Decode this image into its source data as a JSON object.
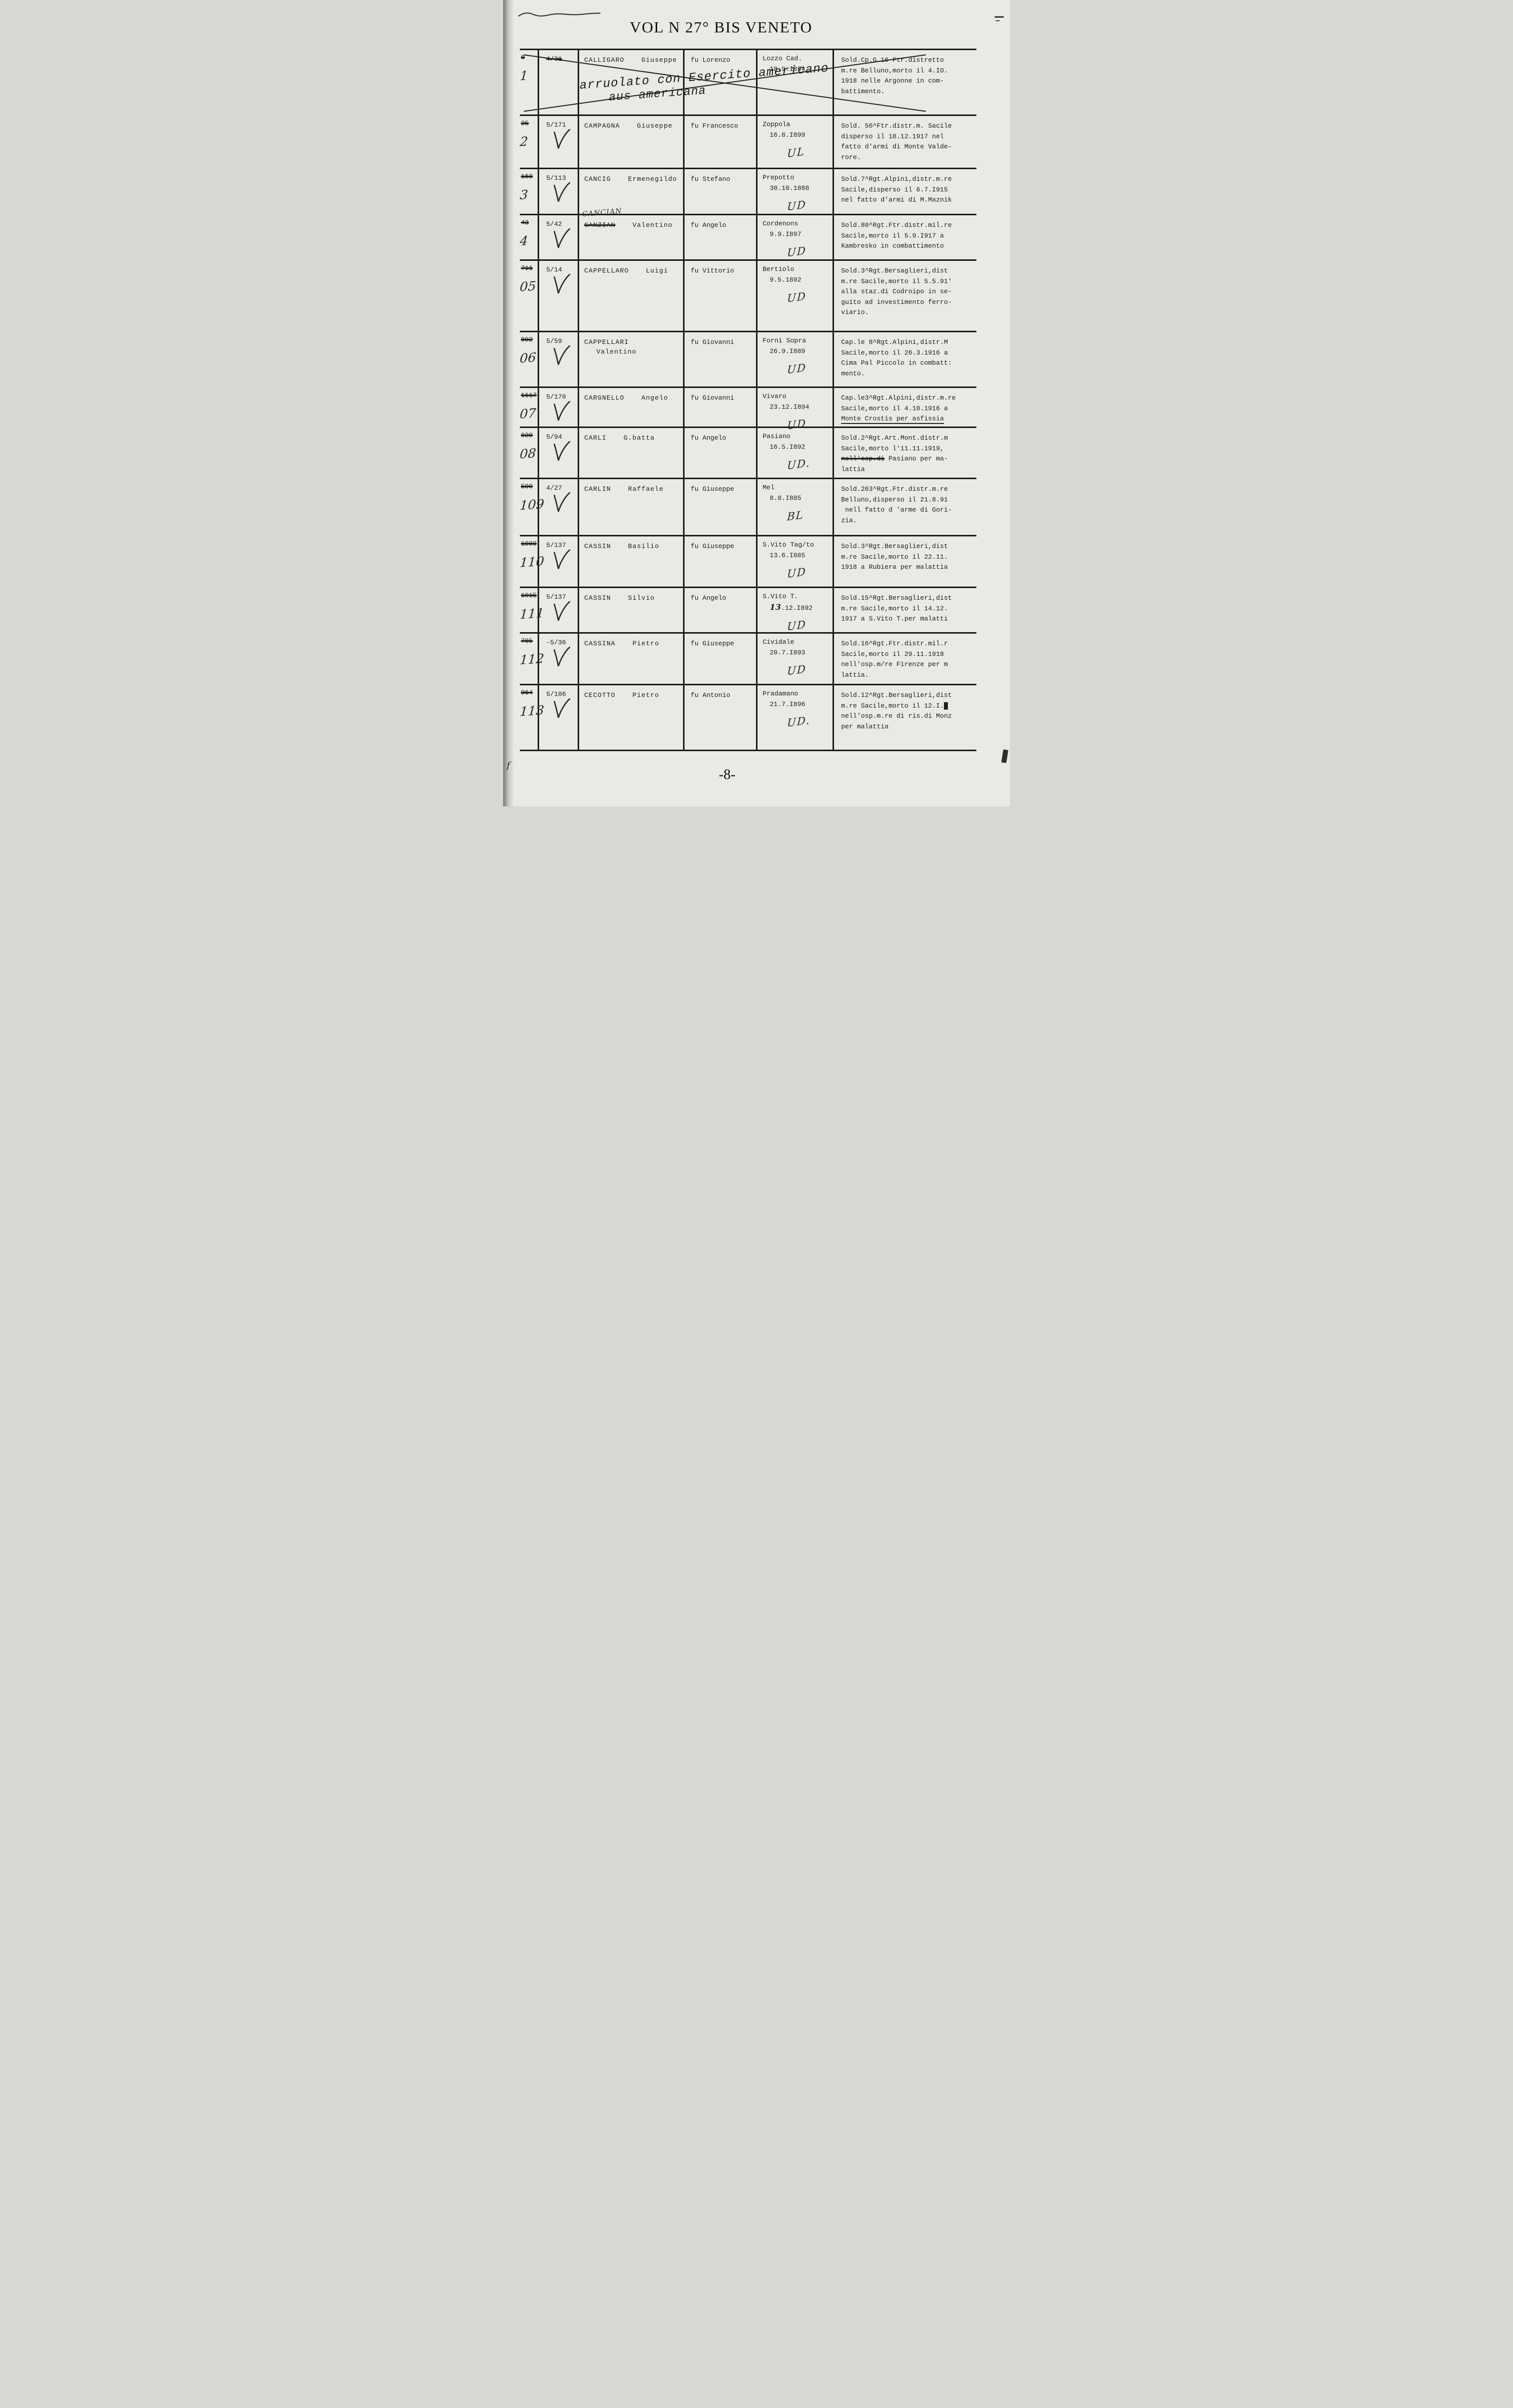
{
  "page": {
    "title": "VOL N 27° BIS VENETO",
    "page_number": "-8-"
  },
  "table": {
    "rows": [
      {
        "old_no": "8",
        "new_no": "1",
        "ref": "4/31",
        "ref_struck": true,
        "checked": false,
        "struck": true,
        "surname": "CALLIGARO",
        "given": "Giuseppe",
        "father": "fu Lorenzo",
        "place": "Lozzo Cad.",
        "date": "18.9.I894",
        "mark": "",
        "details": [
          "Sold.Cp.G.16 Ftr.distretto",
          "m.re Belluno,morto il 4.IO.",
          "1918 nelle Argonne in com-",
          "battimento."
        ],
        "note_lines": [
          "arruolato con Esercito americano",
          "aus americana"
        ]
      },
      {
        "old_no": "25",
        "new_no": "2",
        "ref": "5/171",
        "checked": true,
        "surname": "CAMPAGNA",
        "given": "Giuseppe",
        "father": "fu Francesco",
        "place": "Zoppola",
        "date": "16.8.I899",
        "mark": "UL",
        "details": [
          "Sold. 56^Ftr.distr.m. Sacile",
          "disperso il 18.12.1917 nel",
          "fatto d'armi di Monte Valde-",
          "rore."
        ]
      },
      {
        "old_no": "168",
        "new_no": "3",
        "ref": "5/113",
        "checked": true,
        "surname": "CANCIG",
        "given": "Ermenegildo",
        "father": "fu Stefano",
        "place": "Prepotto",
        "date": "30.10.1888",
        "mark": "UD",
        "details": [
          "Sold.7^Rgt.Alpini,distr.m.re",
          "Sacile,disperso il 6.7.I915",
          "nel fatto d'armi di M.Maznik"
        ]
      },
      {
        "old_no": "43",
        "new_no": "4",
        "ref": "5/42",
        "checked": true,
        "surname": "CANZIAN",
        "surname_struck": true,
        "correction": "CANCIAN",
        "given": "Valentino",
        "father": "fu Angelo",
        "place": "Cordenons",
        "date": "9.9.I897",
        "mark": "UD",
        "details": [
          "Sold.80^Rgt.Ftr.distr.mil.re",
          "Sacile,morto il 5.9.I917 a",
          "Kambresko in combattimento"
        ]
      },
      {
        "old_no": "711",
        "new_no": "05",
        "ref": "5/14",
        "checked": true,
        "surname": "CAPPELLARO",
        "given": "Luigi",
        "father": "fu Vittorio",
        "place": "Bertiolo",
        "date": "9.5.1892",
        "mark": "UD",
        "details": [
          "Sold.3^Rgt.Bersaglieri,dist",
          "m.re Sacile,morto il 5.5.91'",
          "alla staz.di Codroipo in se-",
          "guito ad investimento ferro-",
          "viario."
        ]
      },
      {
        "old_no": "892",
        "new_no": "06",
        "ref": "5/59",
        "checked": true,
        "surname": "CAPPELLARI",
        "given": "Valentino",
        "father": "fu Giovanni",
        "place": "Forni Sopra",
        "date": "26.9.I889",
        "mark": "UD",
        "details": [
          "Cap.le 8^Rgt.Alpini,distr.M",
          "Sacile,morto il 26.3.1916 a",
          "Cima Pal Piccolo in combatt:",
          "mento."
        ]
      },
      {
        "old_no": "1117",
        "new_no": "07",
        "ref": "5/170",
        "checked": true,
        "surname": "CARGNELLO",
        "given": "Angelo",
        "father": "fu Giovanni",
        "place": "Vivaro",
        "date": "23.12.I894",
        "mark": "UD",
        "underline_last": true,
        "details": [
          "Cap.le3^Rgt.Alpini,distr.m.re",
          "Sacile,morto il 4.10.1916 a",
          "Monte Crostis per asfissia"
        ]
      },
      {
        "old_no": "929",
        "new_no": "08",
        "ref": "5/94",
        "checked": true,
        "surname": "CARLI",
        "given": "G.batta",
        "father": "fu Angelo",
        "place": "Pasiano",
        "date": "16.5.I892",
        "mark": "UD.",
        "details": [
          "Sold.2^Rgt.Art.Mont.distr.m",
          "Sacile,morto l'11.11.1919,",
          "nell'osp.di Pasiano per ma-",
          "lattia"
        ],
        "details_struck": "nell'osp.di"
      },
      {
        "old_no": "590",
        "new_no": "109",
        "ref": "4/27",
        "checked": true,
        "surname": "CARLIN",
        "given": "Raffaele",
        "father": "fu Giuseppe",
        "place": "Mel",
        "date": "8.8.I885",
        "mark": "BL",
        "details": [
          "Sold.263^Rgt.Ftr.distr.m.re",
          "Belluno,disperso il 21.8.91",
          " nell fatto d 'arme di Gori-",
          "zia."
        ]
      },
      {
        "old_no": "1089",
        "new_no": "110",
        "ref": "5/137",
        "checked": true,
        "surname": "CASSIN",
        "given": "Basilio",
        "father": "fu Giuseppe",
        "place": "S.Vito Tag/to",
        "date": "13.6.I885",
        "mark": "UD",
        "details": [
          "Sold.3^Rgt.Bersaglieri,dist",
          "m.re Sacile,morto il 22.11.",
          "1918 a Rubiera per malattia"
        ]
      },
      {
        "old_no": "1015",
        "new_no": "111",
        "ref": "5/137",
        "checked": true,
        "surname": "CASSIN",
        "given": "Silvio",
        "father": "fu Angelo",
        "place": "S.Vito T.",
        "date": "13.12.I892",
        "date_hand": "13",
        "mark": "UD",
        "details": [
          "Sold.15^Rgt.Bersaglieri,dist",
          "m.re Sacile,morto il 14.12.",
          "1917 a S.Vito T.per malatti"
        ]
      },
      {
        "old_no": "785",
        "new_no": "112",
        "ref": "-5/36",
        "checked": true,
        "surname": "CASSINA",
        "given": "Pietro",
        "father": "fu Giuseppe",
        "place": "Cividale",
        "date": "20.7.I893",
        "mark": "UD",
        "details": [
          "Sold.16^Rgt.Ftr.distr.mil.r",
          "Sacile,morto il 29.11.1918",
          "nell'osp.m/re Firenze per m",
          "lattia."
        ]
      },
      {
        "old_no": "964",
        "new_no": "113",
        "ref": "5/106",
        "checked": true,
        "surname": "CECOTTO",
        "given": "Pietro",
        "father": "fu Antonio",
        "place": "Pradamano",
        "date": "21.7.I896",
        "mark": "UD.",
        "details": [
          "Sold.12^Rgt.Bersaglieri,dist",
          "m.re Sacile,morto il 12.I.█",
          "nell'osp.m.re di ris.di Monz",
          "per malattia"
        ]
      }
    ]
  }
}
